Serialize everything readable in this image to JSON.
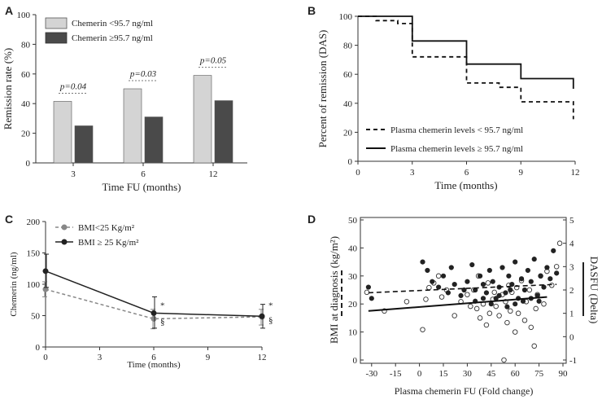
{
  "chart_data": [
    {
      "panel": "A",
      "type": "bar",
      "ylabel": "Remission rate (%)",
      "xlabel": "Time FU (months)",
      "ylim": [
        0,
        100
      ],
      "yticks": [
        "0",
        "20",
        "40",
        "60",
        "80",
        "100"
      ],
      "categories": [
        "3",
        "6",
        "12"
      ],
      "series": [
        {
          "name": "Chemerin <95.7 ng/ml",
          "color": "#d4d4d4",
          "values": [
            41.5,
            50,
            59
          ]
        },
        {
          "name": "Chemerin ≥95.7 ng/ml",
          "color": "#4a4a4a",
          "values": [
            25,
            31,
            42
          ]
        }
      ],
      "annotations": [
        "p=0.04",
        "p=0.03",
        "p=0.05"
      ]
    },
    {
      "panel": "B",
      "type": "line",
      "ylabel": "Percent of remission (DAS)",
      "xlabel": "Time (months)",
      "ylim": [
        0,
        100
      ],
      "xlim": [
        0,
        12
      ],
      "yticks": [
        "0",
        "20",
        "40",
        "60",
        "80",
        "100"
      ],
      "xticks": [
        "0",
        "3",
        "6",
        "9",
        "12"
      ],
      "series": [
        {
          "name": "Plasma chemerin levels < 95.7 ng/ml",
          "style": "dashed",
          "steps": [
            [
              0,
              100
            ],
            [
              1,
              100
            ],
            [
              1,
              97
            ],
            [
              2.2,
              97
            ],
            [
              2.2,
              95
            ],
            [
              3,
              95
            ],
            [
              3,
              72
            ],
            [
              6,
              72
            ],
            [
              6,
              54
            ],
            [
              7.8,
              54
            ],
            [
              7.8,
              51
            ],
            [
              9,
              51
            ],
            [
              9,
              41
            ],
            [
              11.9,
              41
            ],
            [
              11.9,
              29
            ]
          ]
        },
        {
          "name": "Plasma chemerin levels ≥ 95.7 ng/ml",
          "style": "solid",
          "steps": [
            [
              0,
              100
            ],
            [
              3,
              100
            ],
            [
              3,
              83
            ],
            [
              6,
              83
            ],
            [
              6,
              67
            ],
            [
              9,
              67
            ],
            [
              9,
              57
            ],
            [
              11.9,
              57
            ],
            [
              11.9,
              50
            ]
          ]
        }
      ]
    },
    {
      "panel": "C",
      "type": "line",
      "ylabel": "Chemerin (ng/ml)",
      "xlabel": "Time (months)",
      "ylim": [
        0,
        200
      ],
      "xlim": [
        0,
        12
      ],
      "yticks": [
        "0",
        "50",
        "100",
        "150",
        "200"
      ],
      "xticks": [
        "0",
        "3",
        "6",
        "9",
        "12"
      ],
      "series": [
        {
          "name": "BMI<25 Kg/m²",
          "style": "dashed",
          "color": "#888888",
          "x": [
            0,
            6,
            12
          ],
          "y": [
            92,
            45,
            48
          ],
          "err": [
            [
              80,
              104
            ],
            [
              29,
              60
            ],
            [
              35,
              60
            ]
          ]
        },
        {
          "name": "BMI ≥ 25 Kg/m²",
          "style": "solid",
          "color": "#222222",
          "x": [
            0,
            6,
            12
          ],
          "y": [
            121,
            54,
            49
          ],
          "err": [
            [
              95,
              148
            ],
            [
              30,
              80
            ],
            [
              30,
              68
            ]
          ]
        }
      ],
      "annotations": [
        "*",
        "§",
        "*",
        "§"
      ]
    },
    {
      "panel": "D",
      "type": "scatter",
      "ylabel": "BMI at diagnosis (kg/m²)",
      "y2label": "DASFU (Delta)",
      "xlabel": "Plasma chemerin FU (Fold change)",
      "xlim": [
        -35,
        90
      ],
      "ylim": [
        0,
        50
      ],
      "y2lim": [
        -1,
        5
      ],
      "xticks": [
        "-30",
        "-15",
        "0",
        "15",
        "30",
        "45",
        "60",
        "75",
        "90"
      ],
      "yticks": [
        "0",
        "10",
        "20",
        "30",
        "40",
        "50"
      ],
      "y2ticks": [
        "-1",
        "0",
        "1",
        "2",
        "3",
        "4",
        "5"
      ],
      "series": [
        {
          "name": "BMI at diagnosis",
          "marker": "filled",
          "fit": [
            [
              -32,
              24
            ],
            [
              86,
              27
            ]
          ],
          "points": [
            [
              -32,
              26
            ],
            [
              -30,
              22
            ],
            [
              2,
              35
            ],
            [
              5,
              32
            ],
            [
              8,
              28
            ],
            [
              12,
              26
            ],
            [
              15,
              30
            ],
            [
              18,
              24
            ],
            [
              20,
              33
            ],
            [
              22,
              27
            ],
            [
              26,
              23
            ],
            [
              30,
              28
            ],
            [
              33,
              34
            ],
            [
              35,
              25
            ],
            [
              38,
              30
            ],
            [
              40,
              27
            ],
            [
              42,
              24
            ],
            [
              44,
              32
            ],
            [
              46,
              28
            ],
            [
              48,
              22
            ],
            [
              50,
              26
            ],
            [
              52,
              33
            ],
            [
              54,
              24
            ],
            [
              56,
              30
            ],
            [
              58,
              27
            ],
            [
              60,
              35
            ],
            [
              62,
              22
            ],
            [
              64,
              29
            ],
            [
              66,
              25
            ],
            [
              68,
              32
            ],
            [
              70,
              28
            ],
            [
              72,
              36
            ],
            [
              74,
              23
            ],
            [
              76,
              30
            ],
            [
              78,
              26
            ],
            [
              80,
              33
            ],
            [
              82,
              29
            ],
            [
              84,
              39
            ],
            [
              86,
              31
            ],
            [
              45,
              20
            ],
            [
              55,
              19
            ],
            [
              65,
              21
            ],
            [
              50,
              23
            ],
            [
              40,
              22
            ],
            [
              70,
              22
            ],
            [
              60,
              20
            ],
            [
              35,
              21
            ],
            [
              75,
              21
            ],
            [
              28,
              25
            ],
            [
              57,
              25
            ]
          ]
        },
        {
          "name": "DASFU (Delta)",
          "marker": "hollow",
          "fit": [
            [
              -32,
              1.1
            ],
            [
              80,
              1.7
            ]
          ],
          "points": [
            [
              -33,
              1.9
            ],
            [
              -22,
              1.1
            ],
            [
              -8,
              1.5
            ],
            [
              2,
              0.3
            ],
            [
              4,
              1.6
            ],
            [
              6,
              2.1
            ],
            [
              9,
              2.3
            ],
            [
              12,
              2.6
            ],
            [
              14,
              1.7
            ],
            [
              17,
              2.0
            ],
            [
              22,
              0.9
            ],
            [
              26,
              1.5
            ],
            [
              30,
              1.8
            ],
            [
              32,
              1.3
            ],
            [
              36,
              1.2
            ],
            [
              38,
              0.8
            ],
            [
              40,
              1.4
            ],
            [
              42,
              0.5
            ],
            [
              44,
              1.0
            ],
            [
              46,
              1.6
            ],
            [
              48,
              1.3
            ],
            [
              50,
              0.9
            ],
            [
              52,
              1.8
            ],
            [
              53,
              -1.0
            ],
            [
              55,
              0.6
            ],
            [
              57,
              1.1
            ],
            [
              58,
              1.9
            ],
            [
              60,
              0.2
            ],
            [
              62,
              1.0
            ],
            [
              64,
              2.4
            ],
            [
              66,
              0.7
            ],
            [
              67,
              1.5
            ],
            [
              69,
              2.0
            ],
            [
              70,
              0.4
            ],
            [
              72,
              -0.4
            ],
            [
              74,
              1.8
            ],
            [
              76,
              2.6
            ],
            [
              78,
              1.4
            ],
            [
              80,
              2.8
            ],
            [
              83,
              2.2
            ],
            [
              86,
              3.0
            ],
            [
              88,
              4.0
            ],
            [
              34,
              2.0
            ],
            [
              56,
              2.2
            ],
            [
              61,
              2.1
            ],
            [
              47,
              1.9
            ],
            [
              43,
              2.3
            ],
            [
              37,
              2.6
            ],
            [
              54,
              1.5
            ],
            [
              73,
              1.2
            ]
          ]
        }
      ]
    }
  ]
}
